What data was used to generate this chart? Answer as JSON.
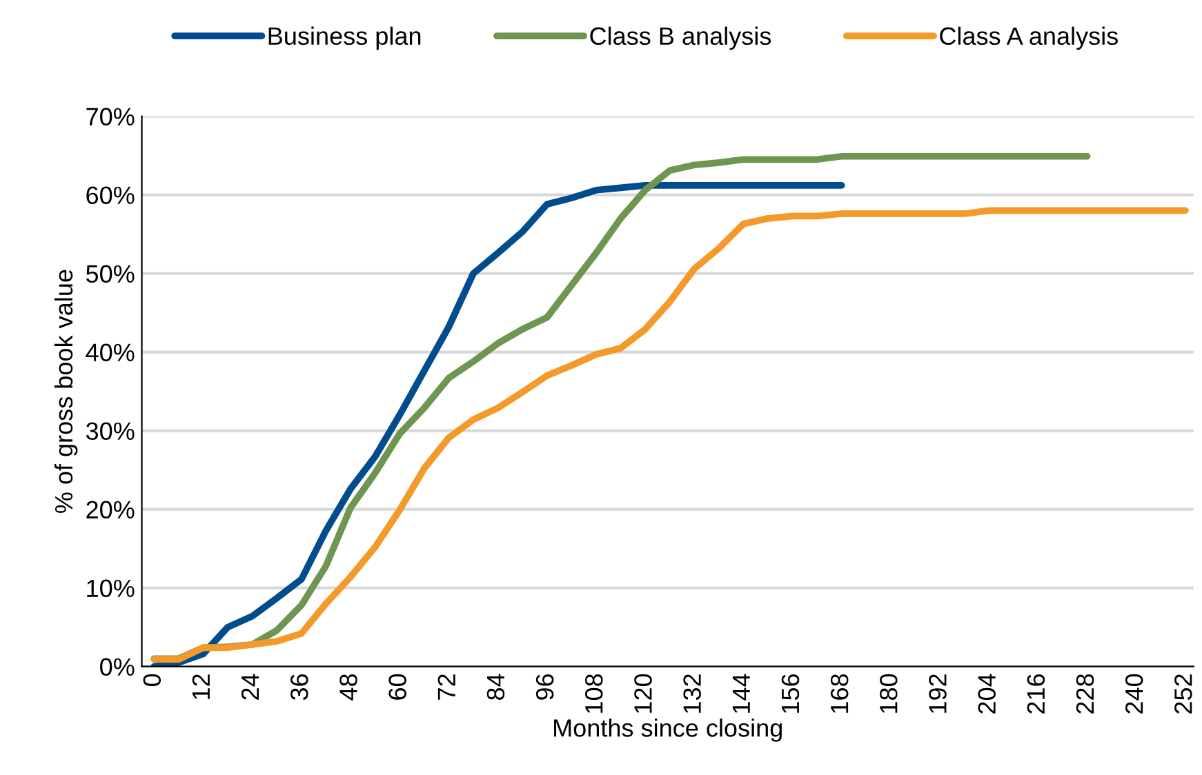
{
  "chart_data": {
    "type": "line",
    "xlabel": "Months since closing",
    "ylabel": "% of gross book value",
    "xlim": [
      -3,
      254
    ],
    "ylim": [
      0,
      70
    ],
    "xticks": [
      0,
      12,
      24,
      36,
      48,
      60,
      72,
      84,
      96,
      108,
      120,
      132,
      144,
      156,
      168,
      180,
      192,
      204,
      216,
      228,
      240,
      252
    ],
    "yticks": [
      {
        "value": 0,
        "label": "0%"
      },
      {
        "value": 10,
        "label": "10%"
      },
      {
        "value": 20,
        "label": "20%"
      },
      {
        "value": 30,
        "label": "30%"
      },
      {
        "value": 40,
        "label": "40%"
      },
      {
        "value": 50,
        "label": "50%"
      },
      {
        "value": 60,
        "label": "60%"
      },
      {
        "value": 70,
        "label": "70%"
      }
    ],
    "grid": "y",
    "legend": "top",
    "marker": "none",
    "line_style": "solid",
    "series": [
      {
        "name": "Business plan",
        "color": "#004c8c",
        "x": [
          0,
          6,
          12,
          18,
          24,
          30,
          36,
          42,
          48,
          54,
          60,
          66,
          72,
          78,
          84,
          90,
          96,
          102,
          108,
          114,
          120,
          126,
          132,
          138,
          144,
          150,
          156,
          162,
          168
        ],
        "values": [
          0,
          0.5,
          1.6,
          5.0,
          6.4,
          8.7,
          11.1,
          17.3,
          22.6,
          26.7,
          32.0,
          37.6,
          43.2,
          50.0,
          52.6,
          55.3,
          58.8,
          59.6,
          60.6,
          60.9,
          61.2,
          61.2,
          61.2,
          61.2,
          61.2,
          61.2,
          61.2,
          61.2,
          61.2
        ]
      },
      {
        "name": "Class B analysis",
        "color": "#6f9650",
        "x": [
          0,
          6,
          12,
          18,
          24,
          30,
          36,
          42,
          48,
          54,
          60,
          66,
          72,
          78,
          84,
          90,
          96,
          102,
          108,
          114,
          120,
          126,
          132,
          138,
          144,
          150,
          156,
          162,
          168,
          174,
          180,
          186,
          192,
          198,
          204,
          210,
          216,
          222,
          228
        ],
        "values": [
          1.0,
          1.0,
          2.4,
          2.5,
          2.8,
          4.6,
          7.8,
          12.8,
          20.2,
          24.6,
          29.6,
          32.9,
          36.7,
          38.8,
          41.1,
          42.9,
          44.4,
          48.5,
          52.6,
          57.0,
          60.6,
          63.1,
          63.8,
          64.1,
          64.5,
          64.5,
          64.5,
          64.5,
          64.9,
          64.9,
          64.9,
          64.9,
          64.9,
          64.9,
          64.9,
          64.9,
          64.9,
          64.9,
          64.9
        ]
      },
      {
        "name": "Class A analysis",
        "color": "#f39a2b",
        "x": [
          0,
          6,
          12,
          18,
          24,
          30,
          36,
          42,
          48,
          54,
          60,
          66,
          72,
          78,
          84,
          90,
          96,
          102,
          108,
          114,
          120,
          126,
          132,
          138,
          144,
          150,
          156,
          162,
          168,
          174,
          180,
          186,
          192,
          198,
          204,
          210,
          216,
          222,
          228,
          234,
          240,
          246,
          252
        ],
        "values": [
          0.9,
          0.9,
          2.4,
          2.4,
          2.8,
          3.2,
          4.2,
          8.0,
          11.4,
          15.2,
          19.9,
          25.2,
          29.1,
          31.4,
          32.9,
          34.9,
          37.0,
          38.3,
          39.7,
          40.5,
          42.9,
          46.4,
          50.6,
          53.2,
          56.3,
          57.0,
          57.3,
          57.3,
          57.6,
          57.6,
          57.6,
          57.6,
          57.6,
          57.6,
          58.0,
          58.0,
          58.0,
          58.0,
          58.0,
          58.0,
          58.0,
          58.0,
          58.0
        ]
      }
    ]
  }
}
